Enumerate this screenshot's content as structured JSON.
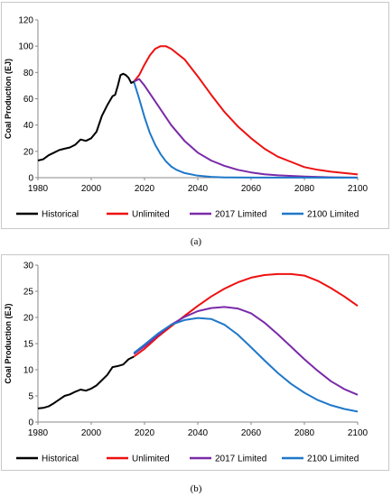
{
  "chart_data": [
    {
      "type": "line",
      "panel_label": "(a)",
      "ylabel": "Coal Production (EJ)",
      "xlabel": "",
      "xlim": [
        1980,
        2100
      ],
      "ylim": [
        0,
        120
      ],
      "xticks": [
        1980,
        2000,
        2020,
        2040,
        2060,
        2080,
        2100
      ],
      "yticks": [
        0,
        20,
        40,
        60,
        80,
        100,
        120
      ],
      "grid": false,
      "legend_position": "bottom",
      "series": [
        {
          "name": "Historical",
          "color": "#000000",
          "points": [
            [
              1980,
              13
            ],
            [
              1982,
              14
            ],
            [
              1984,
              17
            ],
            [
              1986,
              19
            ],
            [
              1988,
              21
            ],
            [
              1990,
              22
            ],
            [
              1992,
              23
            ],
            [
              1994,
              25
            ],
            [
              1996,
              29
            ],
            [
              1998,
              28
            ],
            [
              2000,
              30
            ],
            [
              2002,
              35
            ],
            [
              2004,
              47
            ],
            [
              2006,
              55
            ],
            [
              2008,
              62
            ],
            [
              2009,
              63
            ],
            [
              2010,
              70
            ],
            [
              2011,
              78
            ],
            [
              2012,
              79
            ],
            [
              2013,
              78
            ],
            [
              2014,
              76
            ],
            [
              2015,
              72
            ],
            [
              2016,
              73
            ]
          ]
        },
        {
          "name": "Unlimited",
          "color": "#ee1111",
          "points": [
            [
              2016,
              73
            ],
            [
              2018,
              78
            ],
            [
              2020,
              86
            ],
            [
              2022,
              93
            ],
            [
              2024,
              98
            ],
            [
              2026,
              100
            ],
            [
              2028,
              100
            ],
            [
              2030,
              98
            ],
            [
              2035,
              90
            ],
            [
              2040,
              77
            ],
            [
              2045,
              63
            ],
            [
              2050,
              50
            ],
            [
              2055,
              39
            ],
            [
              2060,
              30
            ],
            [
              2065,
              22
            ],
            [
              2070,
              16
            ],
            [
              2075,
              12
            ],
            [
              2080,
              8
            ],
            [
              2085,
              6
            ],
            [
              2090,
              4.5
            ],
            [
              2095,
              3.5
            ],
            [
              2100,
              2.5
            ]
          ]
        },
        {
          "name": "2017 Limited",
          "color": "#7a2aa8",
          "points": [
            [
              2016,
              73
            ],
            [
              2018,
              75
            ],
            [
              2020,
              70
            ],
            [
              2025,
              55
            ],
            [
              2030,
              40
            ],
            [
              2035,
              28
            ],
            [
              2040,
              19
            ],
            [
              2045,
              13
            ],
            [
              2050,
              9
            ],
            [
              2055,
              6
            ],
            [
              2060,
              4
            ],
            [
              2065,
              2.6
            ],
            [
              2070,
              1.8
            ],
            [
              2080,
              0.8
            ],
            [
              2090,
              0.3
            ],
            [
              2100,
              0.1
            ]
          ]
        },
        {
          "name": "2100 Limited",
          "color": "#1f78c8",
          "points": [
            [
              2016,
              73
            ],
            [
              2018,
              60
            ],
            [
              2020,
              46
            ],
            [
              2022,
              34
            ],
            [
              2024,
              25
            ],
            [
              2026,
              18
            ],
            [
              2028,
              12.5
            ],
            [
              2030,
              8.5
            ],
            [
              2032,
              6
            ],
            [
              2035,
              3.5
            ],
            [
              2040,
              1.5
            ],
            [
              2045,
              0.6
            ],
            [
              2050,
              0.2
            ],
            [
              2060,
              0.05
            ],
            [
              2100,
              0
            ]
          ]
        }
      ]
    },
    {
      "type": "line",
      "panel_label": "(b)",
      "ylabel": "Coal Production (EJ)",
      "xlabel": "",
      "xlim": [
        1980,
        2100
      ],
      "ylim": [
        0,
        30
      ],
      "xticks": [
        1980,
        2000,
        2020,
        2040,
        2060,
        2080,
        2100
      ],
      "yticks": [
        0,
        5,
        10,
        15,
        20,
        25,
        30
      ],
      "grid": false,
      "legend_position": "bottom",
      "series": [
        {
          "name": "Historical",
          "color": "#000000",
          "points": [
            [
              1980,
              2.6
            ],
            [
              1982,
              2.7
            ],
            [
              1984,
              3.0
            ],
            [
              1986,
              3.6
            ],
            [
              1988,
              4.3
            ],
            [
              1990,
              5.0
            ],
            [
              1992,
              5.3
            ],
            [
              1994,
              5.8
            ],
            [
              1996,
              6.2
            ],
            [
              1998,
              6.0
            ],
            [
              2000,
              6.4
            ],
            [
              2002,
              7.0
            ],
            [
              2004,
              8.0
            ],
            [
              2006,
              9.0
            ],
            [
              2008,
              10.5
            ],
            [
              2010,
              10.7
            ],
            [
              2012,
              11.0
            ],
            [
              2014,
              12.0
            ],
            [
              2016,
              12.5
            ]
          ]
        },
        {
          "name": "Unlimited",
          "color": "#ee1111",
          "points": [
            [
              2016,
              12.5
            ],
            [
              2020,
              14.0
            ],
            [
              2025,
              16.3
            ],
            [
              2030,
              18.3
            ],
            [
              2035,
              20.3
            ],
            [
              2040,
              22.2
            ],
            [
              2045,
              24.0
            ],
            [
              2050,
              25.5
            ],
            [
              2055,
              26.7
            ],
            [
              2060,
              27.6
            ],
            [
              2065,
              28.1
            ],
            [
              2070,
              28.3
            ],
            [
              2075,
              28.3
            ],
            [
              2080,
              28.0
            ],
            [
              2085,
              27.0
            ],
            [
              2090,
              25.6
            ],
            [
              2095,
              24.0
            ],
            [
              2100,
              22.2
            ]
          ]
        },
        {
          "name": "2017 Limited",
          "color": "#7a2aa8",
          "points": [
            [
              2016,
              13.0
            ],
            [
              2020,
              14.5
            ],
            [
              2025,
              16.6
            ],
            [
              2030,
              18.6
            ],
            [
              2035,
              20.1
            ],
            [
              2040,
              21.2
            ],
            [
              2045,
              21.8
            ],
            [
              2050,
              22.0
            ],
            [
              2055,
              21.7
            ],
            [
              2060,
              20.8
            ],
            [
              2065,
              19.0
            ],
            [
              2070,
              16.8
            ],
            [
              2075,
              14.4
            ],
            [
              2080,
              12.0
            ],
            [
              2085,
              9.8
            ],
            [
              2090,
              7.8
            ],
            [
              2095,
              6.3
            ],
            [
              2100,
              5.2
            ]
          ]
        },
        {
          "name": "2100 Limited",
          "color": "#1f78c8",
          "points": [
            [
              2016,
              13.2
            ],
            [
              2020,
              14.8
            ],
            [
              2025,
              16.9
            ],
            [
              2030,
              18.6
            ],
            [
              2035,
              19.5
            ],
            [
              2040,
              19.9
            ],
            [
              2045,
              19.7
            ],
            [
              2050,
              18.6
            ],
            [
              2055,
              16.7
            ],
            [
              2060,
              14.3
            ],
            [
              2065,
              11.8
            ],
            [
              2070,
              9.4
            ],
            [
              2075,
              7.3
            ],
            [
              2080,
              5.6
            ],
            [
              2085,
              4.2
            ],
            [
              2090,
              3.2
            ],
            [
              2095,
              2.5
            ],
            [
              2100,
              2.0
            ]
          ]
        }
      ]
    }
  ]
}
